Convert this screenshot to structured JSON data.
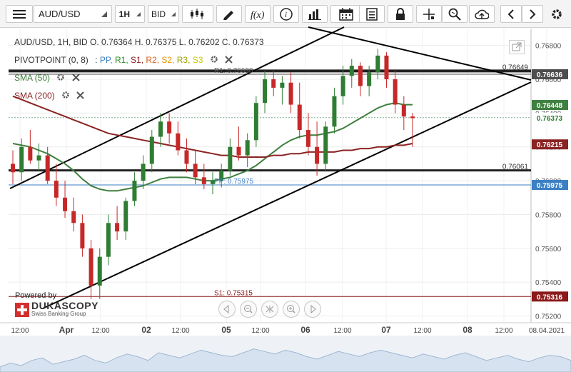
{
  "toolbar": {
    "symbol": "AUD/USD",
    "timeframe": "1H",
    "price_side": "BID"
  },
  "legend": {
    "ohlc": "AUD/USD, 1H, BID   O. 0.76364 H. 0.76375 L. 0.76202 C. 0.76373",
    "pivot_name": "PIVOTPOINT (0, 8)",
    "pivot_colon": ":",
    "pp": "PP,",
    "r1": "R1,",
    "s1": "S1,",
    "r2": "R2,",
    "s2": "S2,",
    "r3": "R3,",
    "s3": "S3",
    "sma50": "SMA (50)",
    "sma200": "SMA (200)"
  },
  "lines": {
    "r1": "R1: 0.76630",
    "top_resistance": "0.76649",
    "support": "0.76061",
    "pp": "PP: 0.75975",
    "s1": "S1: 0.75315"
  },
  "price_tags": {
    "r1": "0.76636",
    "sma50": "0.76448",
    "close": "0.76373",
    "sma200": "0.76215",
    "pp": "0.75975",
    "s1": "0.75316"
  },
  "colors": {
    "accent": "#2b6fbd",
    "candle_up": "#2e7d32",
    "candle_down": "#c62828",
    "sma50": "#3f7f3f",
    "sma200": "#8b2323",
    "pp": "#3b7fc4",
    "s1": "#8b1a1a",
    "r2": "#d9641e",
    "s2": "#e69500",
    "r3": "#a0a000",
    "s3": "#c8c800"
  },
  "branding": {
    "powered_by": "Powered by",
    "brand": "DUKASCOPY",
    "tagline": "Swiss Banking Group"
  },
  "chart_data": {
    "type": "candlestick",
    "title": "AUD/USD, 1H, BID",
    "ohlc_last": {
      "open": 0.76364,
      "high": 0.76375,
      "low": 0.76202,
      "close": 0.76373
    },
    "y_ticks": [
      "0.76800",
      "0.76600",
      "0.76400",
      "0.76200",
      "0.76000",
      "0.75800",
      "0.75600",
      "0.75400",
      "0.75200"
    ],
    "x_ticks": [
      "12:00",
      "Apr",
      "12:00",
      "02",
      "12:00",
      "05",
      "12:00",
      "06",
      "12:00",
      "07",
      "12:00",
      "08",
      "12:00",
      "08.04.2021"
    ],
    "ylim": [
      0.7516,
      0.769
    ],
    "candles": [
      [
        0.761,
        0.7618,
        0.7598,
        0.7605
      ],
      [
        0.7605,
        0.7625,
        0.76,
        0.762
      ],
      [
        0.762,
        0.763,
        0.761,
        0.7612
      ],
      [
        0.7612,
        0.7622,
        0.7606,
        0.7615
      ],
      [
        0.7615,
        0.762,
        0.7598,
        0.76
      ],
      [
        0.76,
        0.761,
        0.7585,
        0.759
      ],
      [
        0.759,
        0.76,
        0.7578,
        0.7582
      ],
      [
        0.7582,
        0.759,
        0.757,
        0.7575
      ],
      [
        0.7575,
        0.758,
        0.7555,
        0.756
      ],
      [
        0.756,
        0.7565,
        0.753,
        0.7538
      ],
      [
        0.7538,
        0.756,
        0.753,
        0.7555
      ],
      [
        0.7555,
        0.758,
        0.755,
        0.7575
      ],
      [
        0.7575,
        0.7585,
        0.7565,
        0.757
      ],
      [
        0.757,
        0.759,
        0.7565,
        0.7588
      ],
      [
        0.7588,
        0.7605,
        0.7585,
        0.76
      ],
      [
        0.76,
        0.7615,
        0.7595,
        0.761
      ],
      [
        0.761,
        0.763,
        0.7605,
        0.7626
      ],
      [
        0.7626,
        0.764,
        0.762,
        0.7635
      ],
      [
        0.7635,
        0.764,
        0.7622,
        0.7628
      ],
      [
        0.7628,
        0.7635,
        0.7615,
        0.7618
      ],
      [
        0.7618,
        0.7625,
        0.7605,
        0.761
      ],
      [
        0.761,
        0.7618,
        0.7598,
        0.7602
      ],
      [
        0.7602,
        0.761,
        0.7595,
        0.7598
      ],
      [
        0.7598,
        0.7605,
        0.7592,
        0.76
      ],
      [
        0.76,
        0.761,
        0.7596,
        0.7606
      ],
      [
        0.7606,
        0.7625,
        0.7603,
        0.762
      ],
      [
        0.762,
        0.7632,
        0.7612,
        0.7615
      ],
      [
        0.7615,
        0.7628,
        0.7608,
        0.7624
      ],
      [
        0.7624,
        0.765,
        0.762,
        0.7646
      ],
      [
        0.7646,
        0.7665,
        0.764,
        0.766
      ],
      [
        0.766,
        0.7665,
        0.765,
        0.7655
      ],
      [
        0.7655,
        0.7662,
        0.7645,
        0.7658
      ],
      [
        0.7658,
        0.7664,
        0.764,
        0.7645
      ],
      [
        0.7645,
        0.7658,
        0.7625,
        0.763
      ],
      [
        0.763,
        0.764,
        0.7615,
        0.762
      ],
      [
        0.762,
        0.7635,
        0.7603,
        0.761
      ],
      [
        0.761,
        0.7635,
        0.7606,
        0.7632
      ],
      [
        0.7632,
        0.7655,
        0.7628,
        0.765
      ],
      [
        0.765,
        0.7668,
        0.7645,
        0.7662
      ],
      [
        0.7662,
        0.7672,
        0.7655,
        0.7668
      ],
      [
        0.7668,
        0.767,
        0.765,
        0.7656
      ],
      [
        0.7656,
        0.7668,
        0.765,
        0.7664
      ],
      [
        0.7664,
        0.7678,
        0.766,
        0.7674
      ],
      [
        0.7674,
        0.7676,
        0.7655,
        0.766
      ],
      [
        0.766,
        0.7666,
        0.764,
        0.7645
      ],
      [
        0.7645,
        0.765,
        0.763,
        0.7638
      ],
      [
        0.7638,
        0.764,
        0.762,
        0.7637
      ]
    ],
    "series": [
      {
        "name": "SMA (50)",
        "values": [
          0.7622,
          0.7621,
          0.762,
          0.7618,
          0.7616,
          0.7613,
          0.761,
          0.7606,
          0.7601,
          0.7597,
          0.7595,
          0.7594,
          0.7594,
          0.7595,
          0.7596,
          0.7597,
          0.7599,
          0.7601,
          0.7602,
          0.7602,
          0.7602,
          0.7601,
          0.76,
          0.76,
          0.7601,
          0.7602,
          0.7604,
          0.7606,
          0.7609,
          0.7613,
          0.7617,
          0.7621,
          0.7624,
          0.7626,
          0.7627,
          0.7627,
          0.7628,
          0.7629,
          0.7631,
          0.7634,
          0.7637,
          0.764,
          0.7643,
          0.7645,
          0.7646,
          0.7645,
          0.7645
        ]
      },
      {
        "name": "SMA (200)",
        "values": [
          0.765,
          0.7648,
          0.7646,
          0.7644,
          0.7642,
          0.764,
          0.7638,
          0.7636,
          0.7634,
          0.7632,
          0.763,
          0.7628,
          0.7627,
          0.7626,
          0.7625,
          0.7624,
          0.7623,
          0.7622,
          0.7621,
          0.762,
          0.7619,
          0.7618,
          0.7617,
          0.7616,
          0.7615,
          0.7615,
          0.7614,
          0.7614,
          0.7614,
          0.7614,
          0.7615,
          0.7615,
          0.7616,
          0.7616,
          0.7617,
          0.7617,
          0.7617,
          0.7617,
          0.7618,
          0.7618,
          0.7619,
          0.7619,
          0.762,
          0.762,
          0.7621,
          0.7621,
          0.7622
        ]
      }
    ],
    "pivot_levels": {
      "R1": 0.7663,
      "PP": 0.75975,
      "S1": 0.75315
    },
    "horizontal_lines": [
      0.76649,
      0.76061
    ],
    "grid": true
  }
}
